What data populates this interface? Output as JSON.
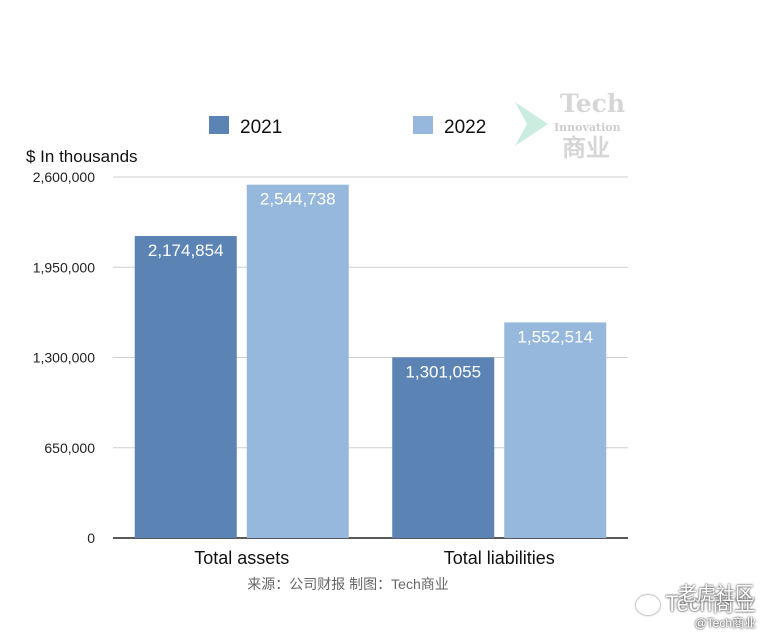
{
  "chart_data": {
    "type": "bar",
    "categories": [
      "Total assets",
      "Total liabilities"
    ],
    "series": [
      {
        "name": "2021",
        "values": [
          2174854,
          1301055
        ],
        "labels": [
          "2,174,854",
          "1,301,055"
        ]
      },
      {
        "name": "2022",
        "values": [
          2544738,
          1552514
        ],
        "labels": [
          "2,544,738",
          "1,552,514"
        ]
      }
    ],
    "ylabel": "$ In thousands",
    "ylim": [
      0,
      2600000
    ],
    "yticks": [
      0,
      650000,
      1300000,
      1950000,
      2600000
    ],
    "ytick_labels": [
      "0",
      "650,000",
      "1,300,000",
      "1,950,000",
      "2,600,000"
    ],
    "grid": true,
    "legend_position": "top-center"
  },
  "colors": {
    "series_2021": "#5b84b5",
    "series_2022": "#95b8dc",
    "grid": "#cfcfcf",
    "axis": "#222222"
  },
  "source_note": "来源：公司财报 制图：Tech商业",
  "watermark": {
    "line1": "Tech",
    "line2": "Innovation",
    "line3": "商业"
  },
  "account": {
    "community": "老虎社区",
    "name": "Tech商业",
    "handle": "@Tech商业",
    "icon": "wechat-icon"
  }
}
